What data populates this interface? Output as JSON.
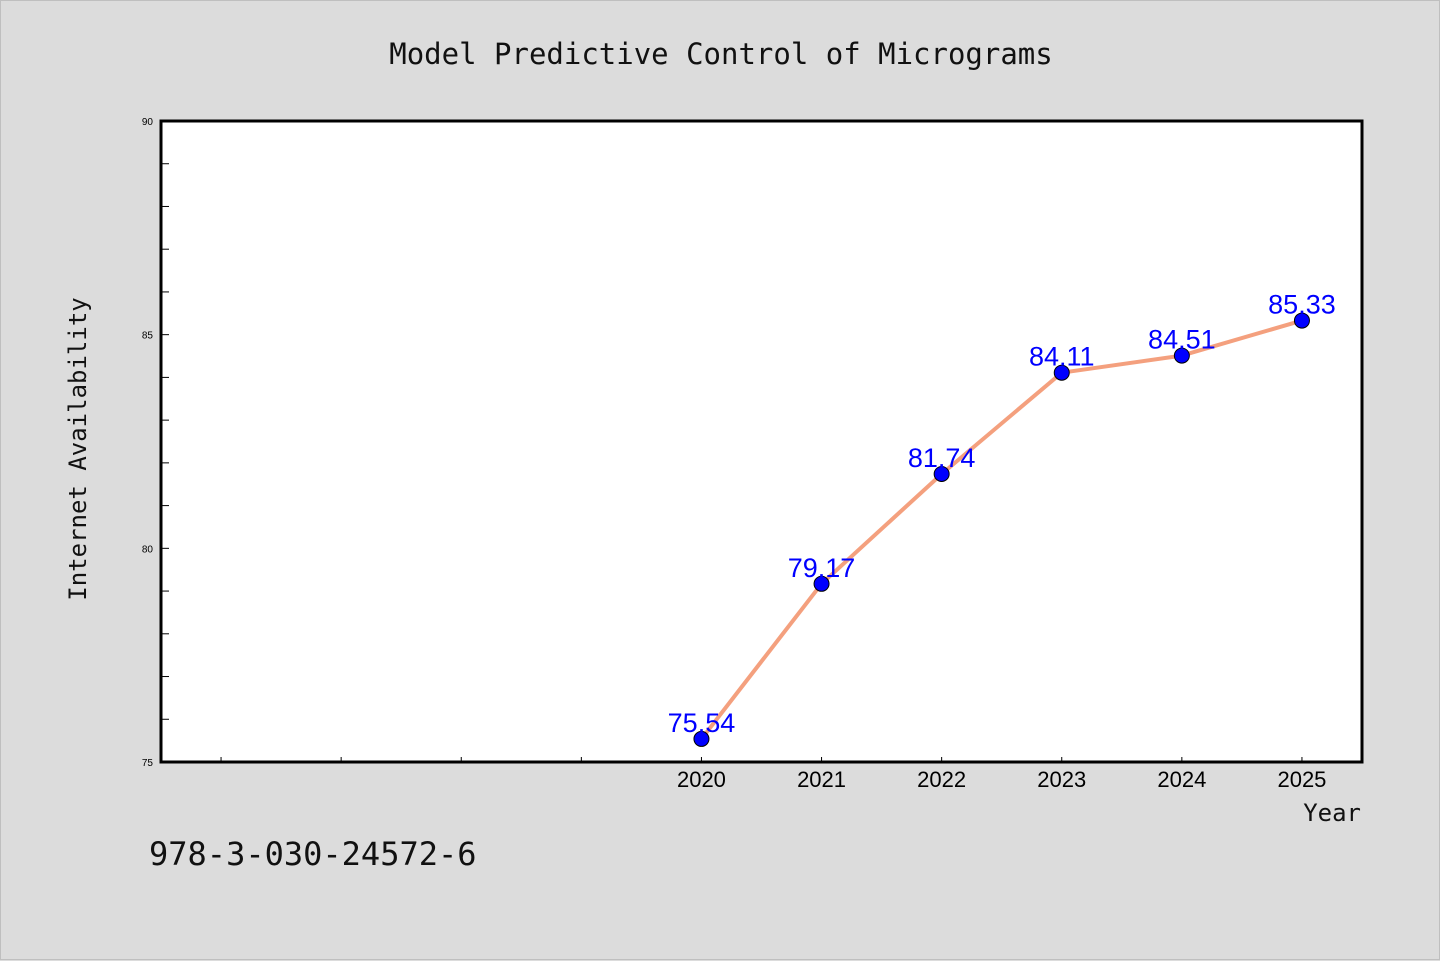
{
  "chart_data": {
    "type": "line",
    "title": "Model Predictive Control of Micrograms",
    "xlabel": "Year",
    "ylabel": "Internet Availability",
    "x": [
      "2020",
      "2021",
      "2022",
      "2023",
      "2024",
      "2025"
    ],
    "series": [
      {
        "values": [
          75.54,
          79.17,
          81.74,
          84.11,
          84.51,
          85.33
        ]
      }
    ],
    "data_labels": [
      "75.54",
      "79.17",
      "81.74",
      "84.11",
      "84.51",
      "85.33"
    ],
    "ylim": [
      75,
      90
    ],
    "yticks": [
      "75",
      "80",
      "85",
      "90"
    ],
    "xlim_slots": 10,
    "grid": false,
    "legend": "none",
    "line_color": "#f4a07e",
    "marker_color": "#0000ff",
    "label_color": "#0000ff",
    "footer_text": "978-3-030-24572-6"
  }
}
